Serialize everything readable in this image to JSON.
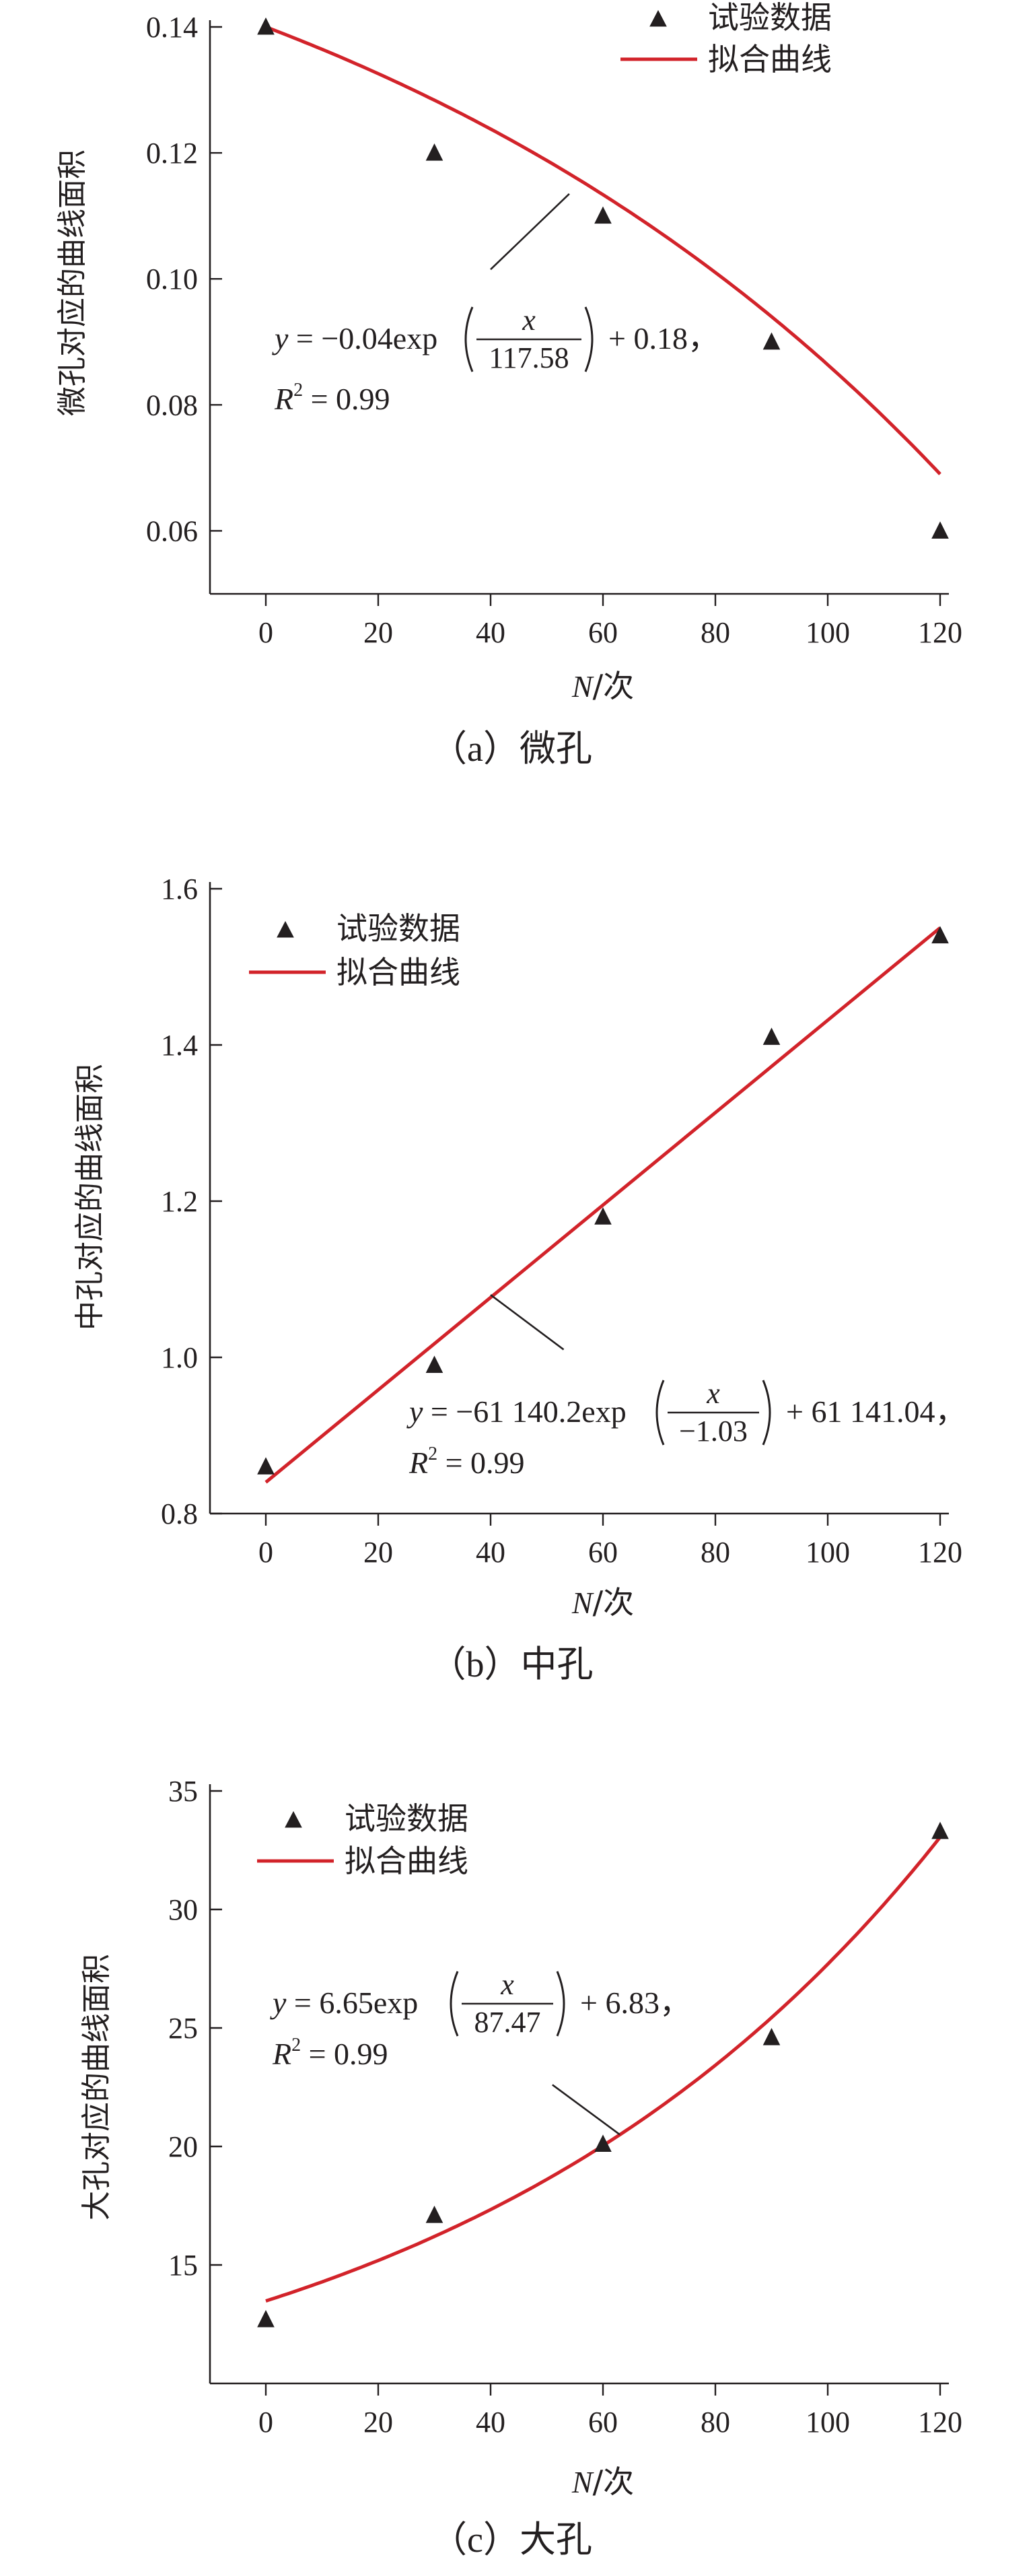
{
  "chart_data": [
    {
      "type": "scatter",
      "caption": "（a）微孔",
      "ylabel": "微孔对应的曲线面积",
      "xlabel": "N/次",
      "xlabel_var": "N",
      "xlabel_unit": "/次",
      "xlim": [
        -10,
        120
      ],
      "ylim": [
        0.05,
        0.14
      ],
      "xticks": [
        0,
        20,
        40,
        60,
        80,
        100,
        120
      ],
      "yticks": [
        0.06,
        0.08,
        0.1,
        0.12,
        0.14
      ],
      "ytick_labels": [
        "0.06",
        "0.08",
        "0.10",
        "0.12",
        "0.14"
      ],
      "legend": {
        "data_label": "试验数据",
        "fit_label": "拟合曲线",
        "position": "top-right"
      },
      "series": [
        {
          "name": "试验数据",
          "x": [
            0,
            30,
            60,
            90,
            120
          ],
          "y": [
            0.14,
            0.12,
            0.11,
            0.09,
            0.06
          ]
        }
      ],
      "fit": {
        "a": -0.04,
        "b": 117.58,
        "c": 0.18
      },
      "equation": {
        "lhs": "y = −0.04exp",
        "numerator": "x",
        "denominator": "117.58",
        "rhs": "+ 0.18，",
        "r2_prefix": "R",
        "r2_sup": "2",
        "r2_rest": " = 0.99"
      },
      "annotation": {
        "from": [
          40,
          0.1015
        ],
        "to": [
          54,
          0.1135
        ]
      }
    },
    {
      "type": "scatter",
      "caption": "（b）中孔",
      "ylabel": "中孔对应的曲线面积",
      "xlabel": "N/次",
      "xlabel_var": "N",
      "xlabel_unit": "/次",
      "xlim": [
        -10,
        120
      ],
      "ylim": [
        0.8,
        1.6
      ],
      "xticks": [
        0,
        20,
        40,
        60,
        80,
        100,
        120
      ],
      "yticks": [
        0.8,
        1.0,
        1.2,
        1.4,
        1.6
      ],
      "ytick_labels": [
        "0.8",
        "1.0",
        "1.2",
        "1.4",
        "1.6"
      ],
      "legend": {
        "data_label": "试验数据",
        "fit_label": "拟合曲线",
        "position": "top-left"
      },
      "series": [
        {
          "name": "试验数据",
          "x": [
            0,
            30,
            60,
            90,
            120
          ],
          "y": [
            0.86,
            0.99,
            1.18,
            1.41,
            1.54
          ]
        }
      ],
      "fit": {
        "a": -61140.2,
        "b": -1.03,
        "c": 61141.04,
        "drawn_line": [
          [
            0,
            0.84
          ],
          [
            120,
            1.55
          ]
        ]
      },
      "equation": {
        "lhs": "y = −61 140.2exp",
        "numerator": "x",
        "denominator": "−1.03",
        "rhs": "+ 61 141.04，",
        "r2_prefix": "R",
        "r2_sup": "2",
        "r2_rest": " = 0.99"
      },
      "annotation": {
        "from": [
          53,
          1.01
        ],
        "to": [
          40,
          1.08
        ]
      }
    },
    {
      "type": "scatter",
      "caption": "（c）大孔",
      "ylabel": "大孔对应的曲线面积",
      "xlabel": "N/次",
      "xlabel_var": "N",
      "xlabel_unit": "/次",
      "xlim": [
        -10,
        120
      ],
      "ylim": [
        10,
        35
      ],
      "xticks": [
        0,
        20,
        40,
        60,
        80,
        100,
        120
      ],
      "yticks": [
        15,
        20,
        25,
        30,
        35
      ],
      "ytick_labels": [
        "15",
        "20",
        "25",
        "30",
        "35"
      ],
      "legend": {
        "data_label": "试验数据",
        "fit_label": "拟合曲线",
        "position": "top-left"
      },
      "series": [
        {
          "name": "试验数据",
          "x": [
            0,
            30,
            60,
            90,
            120
          ],
          "y": [
            12.7,
            17.1,
            20.1,
            24.6,
            33.3
          ]
        }
      ],
      "fit": {
        "a": 6.65,
        "b": 87.47,
        "c": 6.83
      },
      "equation": {
        "lhs": "y = 6.65exp",
        "numerator": "x",
        "denominator": "87.47",
        "rhs": "+ 6.83，",
        "r2_prefix": "R",
        "r2_sup": "2",
        "r2_rest": " = 0.99"
      },
      "annotation": {
        "from": [
          51,
          22.6
        ],
        "to": [
          63,
          20.5
        ]
      }
    }
  ],
  "colors": {
    "fit": "#d2232a",
    "ink": "#231f20"
  }
}
